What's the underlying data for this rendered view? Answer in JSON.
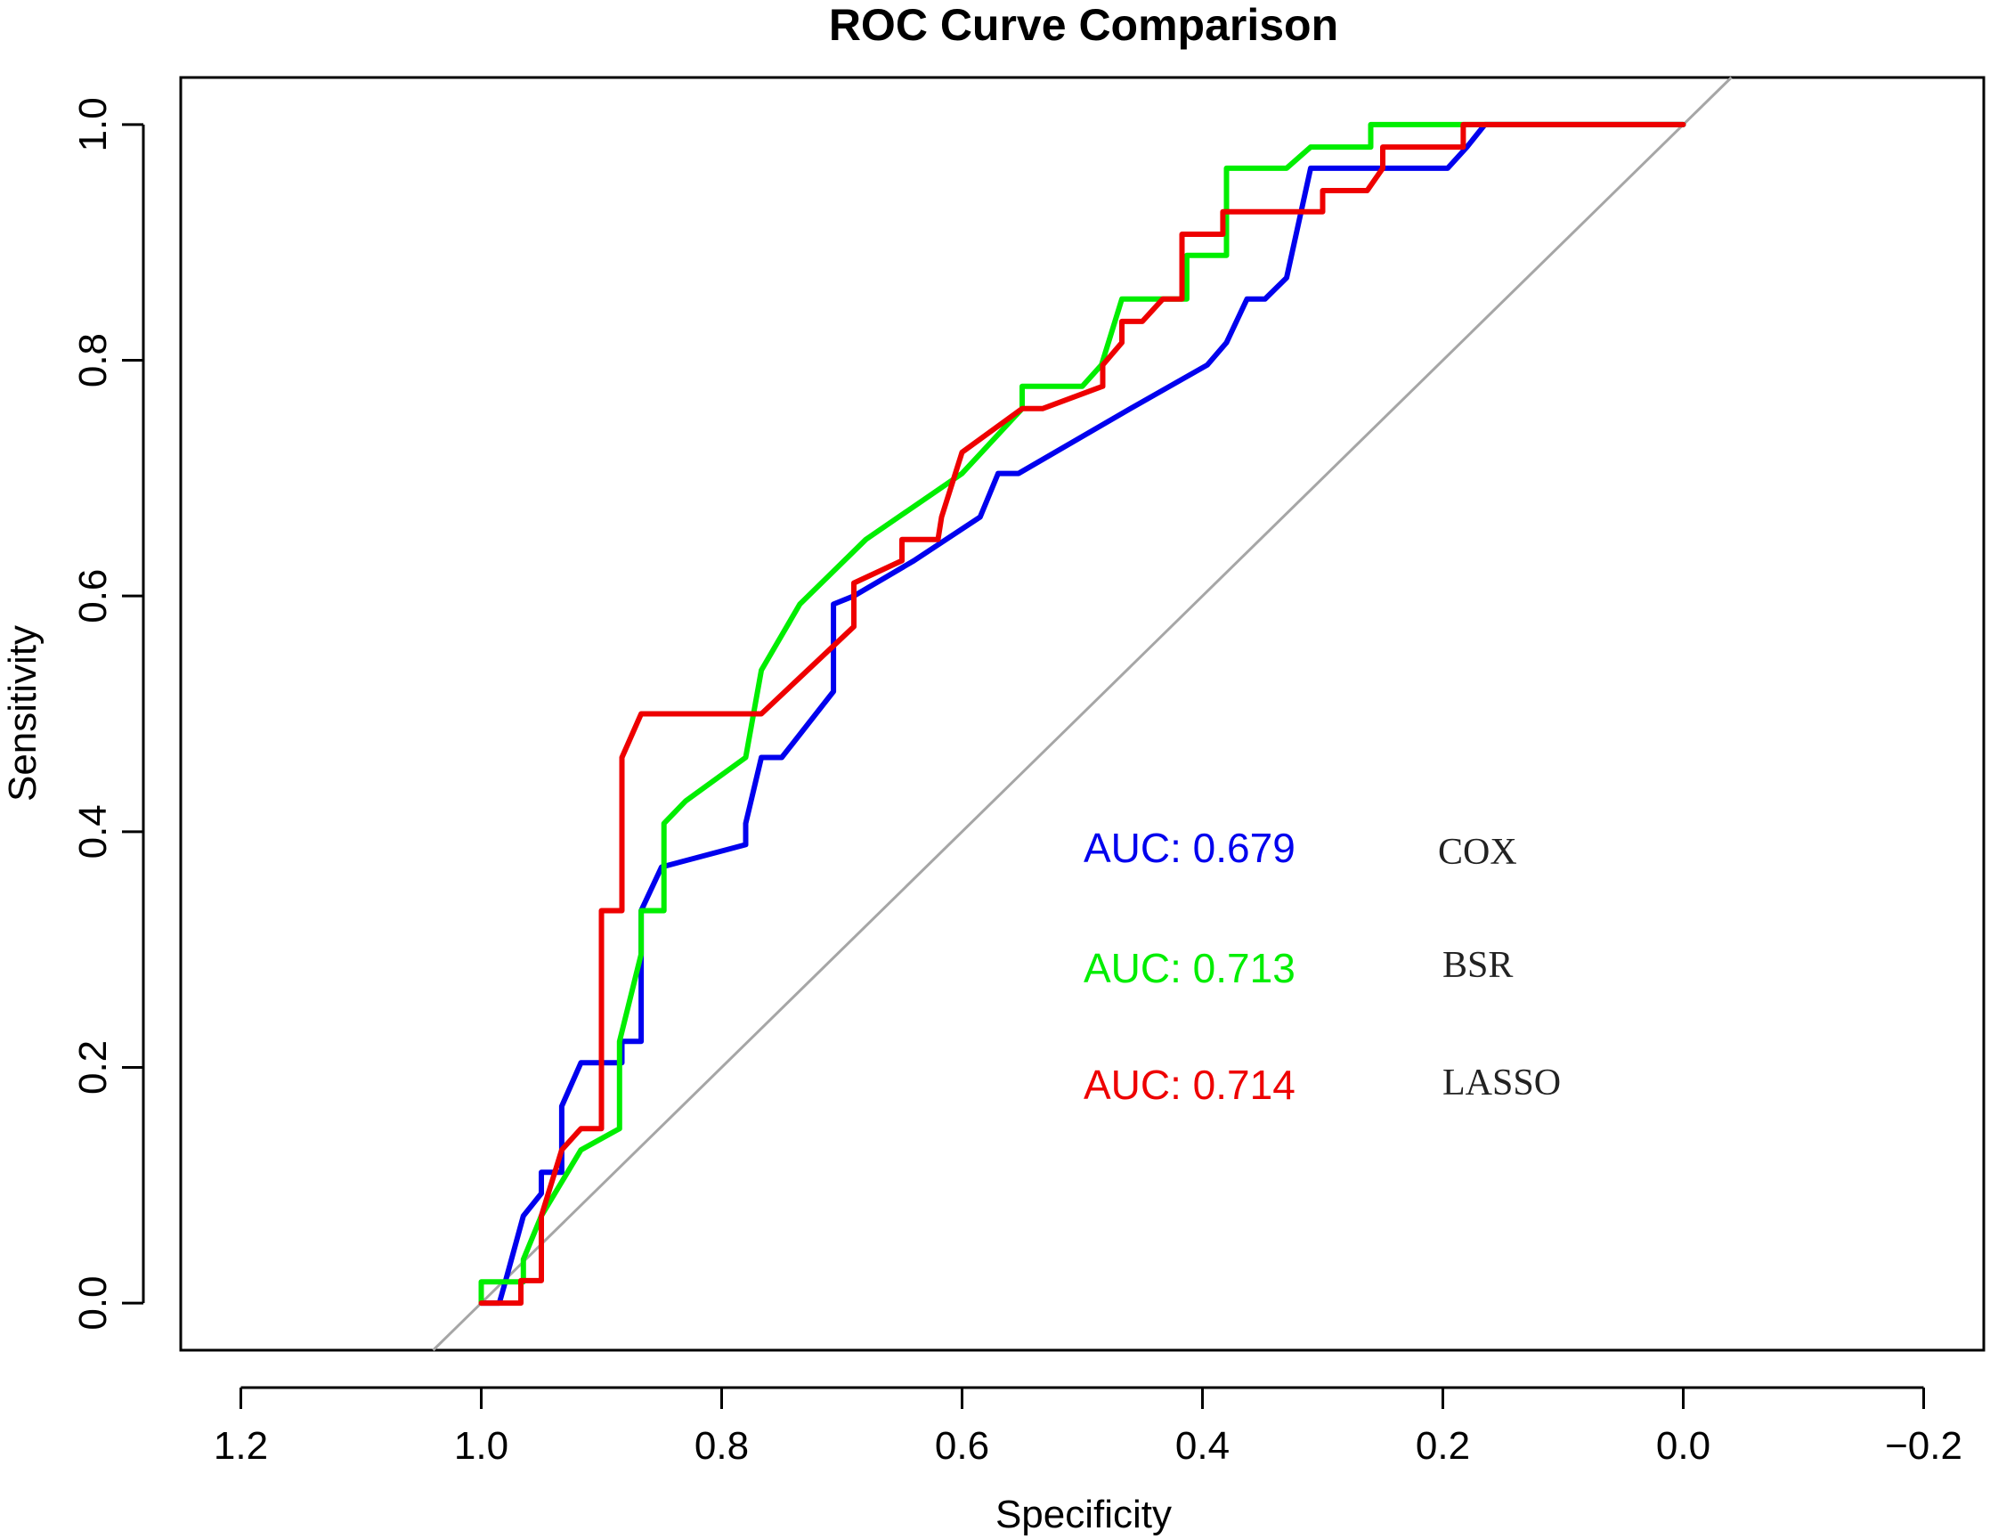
{
  "chart_data": {
    "type": "line",
    "title": "ROC Curve Comparison",
    "xlabel": "Specificity",
    "ylabel": "Sensitivity",
    "x_reversed": true,
    "xlim": [
      1.25,
      -0.25
    ],
    "ylim": [
      -0.04,
      1.04
    ],
    "x_ticks": [
      1.2,
      1.0,
      0.8,
      0.6,
      0.4,
      0.2,
      0.0,
      -0.2
    ],
    "x_tick_labels": [
      "1.2",
      "1.0",
      "0.8",
      "0.6",
      "0.4",
      "0.2",
      "0.0",
      "−0.2"
    ],
    "y_ticks": [
      0.0,
      0.2,
      0.4,
      0.6,
      0.8,
      1.0
    ],
    "y_tick_labels": [
      "0.0",
      "0.2",
      "0.4",
      "0.6",
      "0.8",
      "1.0"
    ],
    "grid": false,
    "reference_line": {
      "description": "diagonal chance line",
      "points": [
        [
          1.04,
          -0.04
        ],
        [
          -0.04,
          1.04
        ]
      ],
      "color": "#a6a6a6"
    },
    "series": [
      {
        "name": "COX",
        "auc_label": "AUC: 0.679",
        "color": "#0000ee",
        "points": [
          [
            1.0,
            0.0
          ],
          [
            0.985,
            0.0
          ],
          [
            0.98,
            0.018
          ],
          [
            0.965,
            0.074
          ],
          [
            0.95,
            0.093
          ],
          [
            0.95,
            0.111
          ],
          [
            0.933,
            0.111
          ],
          [
            0.933,
            0.167
          ],
          [
            0.917,
            0.204
          ],
          [
            0.883,
            0.204
          ],
          [
            0.883,
            0.222
          ],
          [
            0.867,
            0.222
          ],
          [
            0.867,
            0.333
          ],
          [
            0.85,
            0.37
          ],
          [
            0.78,
            0.389
          ],
          [
            0.78,
            0.407
          ],
          [
            0.767,
            0.463
          ],
          [
            0.75,
            0.463
          ],
          [
            0.707,
            0.519
          ],
          [
            0.707,
            0.593
          ],
          [
            0.69,
            0.6
          ],
          [
            0.64,
            0.63
          ],
          [
            0.585,
            0.667
          ],
          [
            0.57,
            0.704
          ],
          [
            0.553,
            0.704
          ],
          [
            0.46,
            0.759
          ],
          [
            0.396,
            0.796
          ],
          [
            0.38,
            0.815
          ],
          [
            0.363,
            0.852
          ],
          [
            0.348,
            0.852
          ],
          [
            0.33,
            0.87
          ],
          [
            0.31,
            0.963
          ],
          [
            0.196,
            0.963
          ],
          [
            0.18,
            0.981
          ],
          [
            0.165,
            1.0
          ],
          [
            0.0,
            1.0
          ]
        ]
      },
      {
        "name": "BSR",
        "auc_label": "AUC: 0.713",
        "color": "#00ee00",
        "points": [
          [
            1.0,
            0.0
          ],
          [
            1.0,
            0.018
          ],
          [
            0.965,
            0.018
          ],
          [
            0.965,
            0.037
          ],
          [
            0.95,
            0.074
          ],
          [
            0.917,
            0.13
          ],
          [
            0.885,
            0.148
          ],
          [
            0.885,
            0.222
          ],
          [
            0.867,
            0.296
          ],
          [
            0.867,
            0.333
          ],
          [
            0.848,
            0.333
          ],
          [
            0.848,
            0.407
          ],
          [
            0.83,
            0.426
          ],
          [
            0.78,
            0.463
          ],
          [
            0.767,
            0.537
          ],
          [
            0.735,
            0.593
          ],
          [
            0.68,
            0.648
          ],
          [
            0.6,
            0.704
          ],
          [
            0.55,
            0.759
          ],
          [
            0.55,
            0.778
          ],
          [
            0.5,
            0.778
          ],
          [
            0.484,
            0.796
          ],
          [
            0.467,
            0.852
          ],
          [
            0.413,
            0.852
          ],
          [
            0.413,
            0.889
          ],
          [
            0.38,
            0.889
          ],
          [
            0.38,
            0.963
          ],
          [
            0.33,
            0.963
          ],
          [
            0.31,
            0.981
          ],
          [
            0.26,
            0.981
          ],
          [
            0.26,
            1.0
          ],
          [
            0.0,
            1.0
          ]
        ]
      },
      {
        "name": "LASSO",
        "auc_label": "AUC: 0.714",
        "color": "#ee0000",
        "points": [
          [
            1.0,
            0.0
          ],
          [
            0.983,
            0.0
          ],
          [
            0.967,
            0.0
          ],
          [
            0.967,
            0.019
          ],
          [
            0.95,
            0.019
          ],
          [
            0.95,
            0.074
          ],
          [
            0.933,
            0.13
          ],
          [
            0.917,
            0.148
          ],
          [
            0.9,
            0.148
          ],
          [
            0.9,
            0.333
          ],
          [
            0.883,
            0.333
          ],
          [
            0.883,
            0.463
          ],
          [
            0.867,
            0.5
          ],
          [
            0.767,
            0.5
          ],
          [
            0.69,
            0.574
          ],
          [
            0.69,
            0.611
          ],
          [
            0.65,
            0.63
          ],
          [
            0.65,
            0.648
          ],
          [
            0.62,
            0.648
          ],
          [
            0.617,
            0.667
          ],
          [
            0.6,
            0.722
          ],
          [
            0.55,
            0.759
          ],
          [
            0.533,
            0.759
          ],
          [
            0.483,
            0.778
          ],
          [
            0.483,
            0.796
          ],
          [
            0.467,
            0.815
          ],
          [
            0.467,
            0.833
          ],
          [
            0.45,
            0.833
          ],
          [
            0.433,
            0.852
          ],
          [
            0.417,
            0.852
          ],
          [
            0.417,
            0.907
          ],
          [
            0.383,
            0.907
          ],
          [
            0.383,
            0.926
          ],
          [
            0.3,
            0.926
          ],
          [
            0.3,
            0.944
          ],
          [
            0.263,
            0.944
          ],
          [
            0.25,
            0.963
          ],
          [
            0.25,
            0.981
          ],
          [
            0.183,
            0.981
          ],
          [
            0.183,
            1.0
          ],
          [
            0.0,
            1.0
          ]
        ]
      }
    ]
  }
}
